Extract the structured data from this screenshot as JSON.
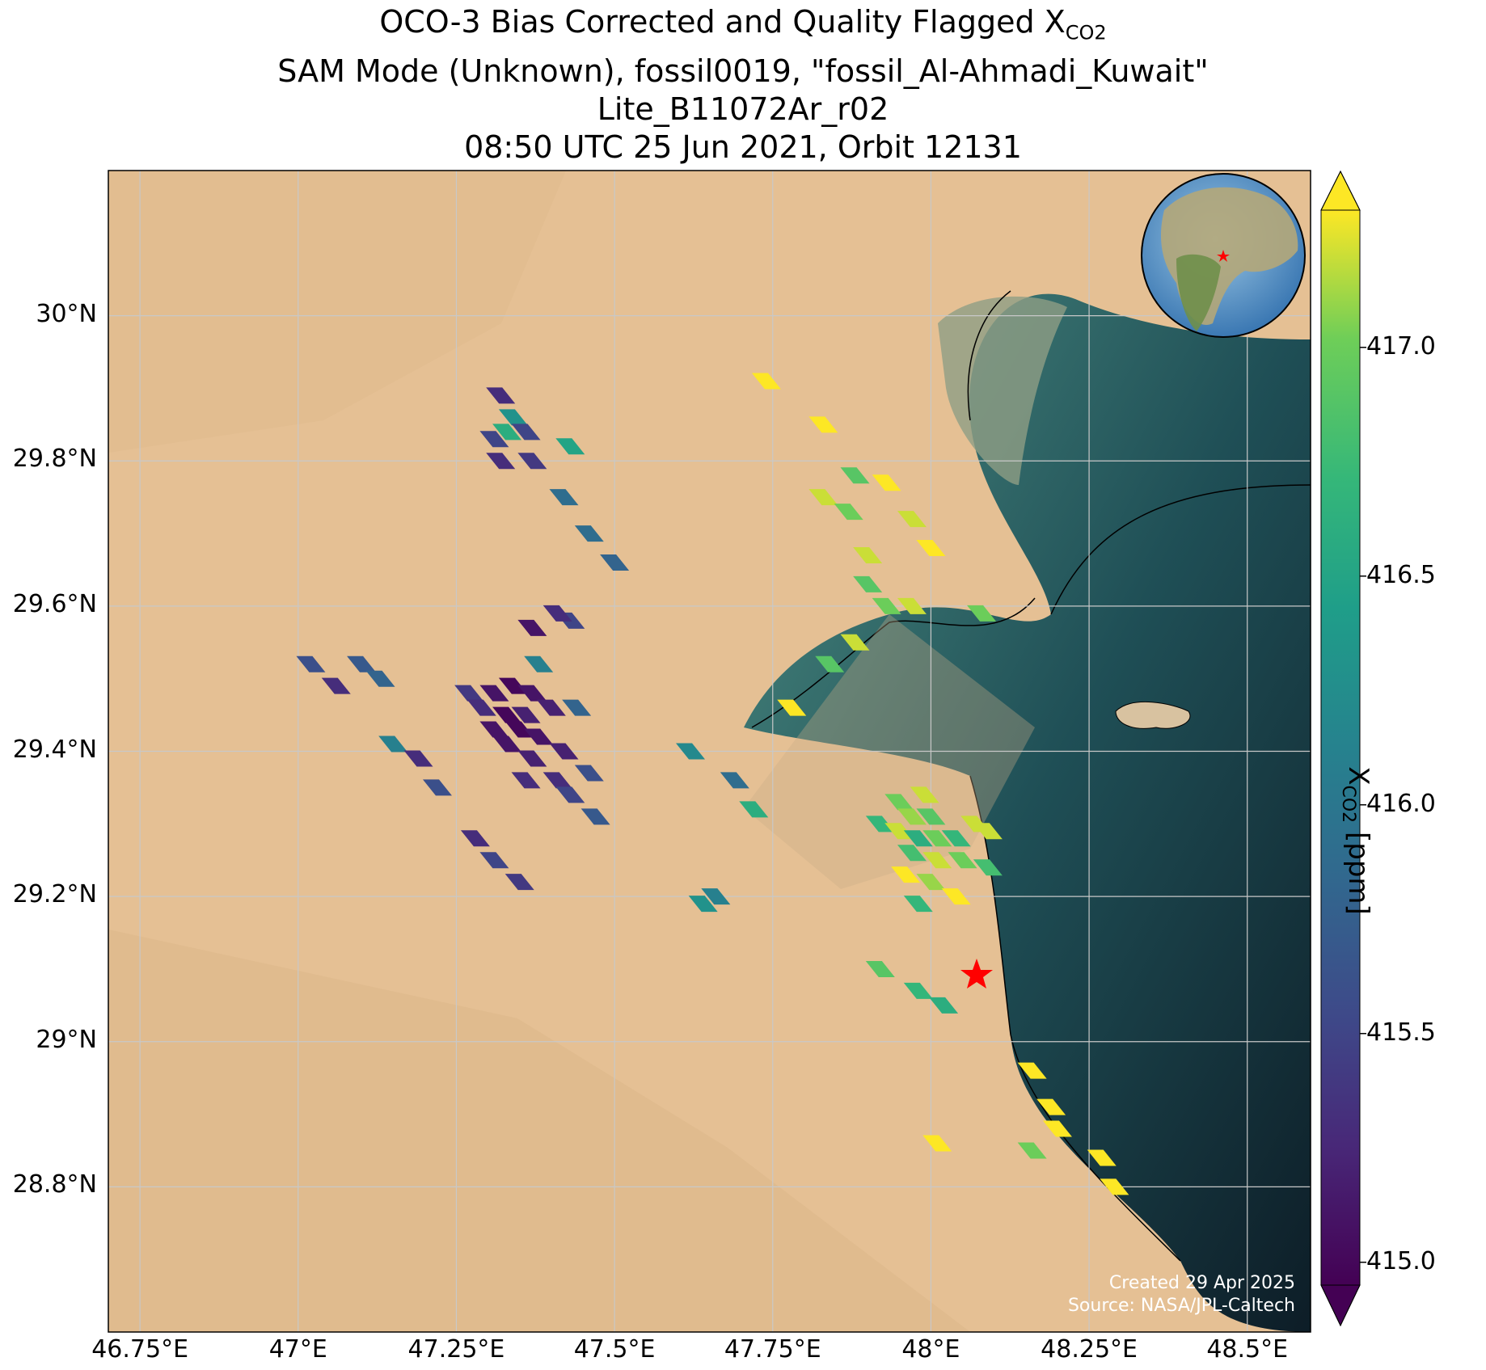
{
  "title": {
    "line1_prefix": "OCO-3 Bias Corrected and Quality Flagged X",
    "line1_sub": "CO2",
    "line2": "SAM Mode (Unknown), fossil0019, \"fossil_Al-Ahmadi_Kuwait\"",
    "line3": "Lite_B11072Ar_r02",
    "line4": "08:50 UTC 25 Jun 2021, Orbit 12131"
  },
  "map_data": {
    "lon_range": [
      46.7,
      48.6
    ],
    "lat_range": [
      28.6,
      30.2
    ],
    "lon_ticks": [
      "46.75°E",
      "47°E",
      "47.25°E",
      "47.5°E",
      "47.75°E",
      "48°E",
      "48.25°E",
      "48.5°E"
    ],
    "lon_tick_values": [
      46.75,
      47.0,
      47.25,
      47.5,
      47.75,
      48.0,
      48.25,
      48.5
    ],
    "lat_ticks": [
      "30°N",
      "29.8°N",
      "29.6°N",
      "29.4°N",
      "29.2°N",
      "29°N",
      "28.8°N"
    ],
    "lat_tick_values": [
      30.0,
      29.8,
      29.6,
      29.4,
      29.2,
      29.0,
      28.8
    ],
    "gridlines": true,
    "basemap": "satellite imagery",
    "target_marker": {
      "symbol": "red star",
      "lon": 48.07,
      "lat": 29.09
    },
    "inset": "globe with red star at target",
    "soundings": [
      [
        47.32,
        29.89,
        415.3
      ],
      [
        47.34,
        29.86,
        416.3
      ],
      [
        47.33,
        29.84,
        416.6
      ],
      [
        47.36,
        29.84,
        415.5
      ],
      [
        47.31,
        29.83,
        415.5
      ],
      [
        47.32,
        29.8,
        415.3
      ],
      [
        47.37,
        29.8,
        415.4
      ],
      [
        47.43,
        29.82,
        416.5
      ],
      [
        47.42,
        29.75,
        415.9
      ],
      [
        47.46,
        29.7,
        415.9
      ],
      [
        47.5,
        29.66,
        415.8
      ],
      [
        47.43,
        29.58,
        415.5
      ],
      [
        47.41,
        29.59,
        415.3
      ],
      [
        47.37,
        29.57,
        415.1
      ],
      [
        47.38,
        29.52,
        416.1
      ],
      [
        47.02,
        29.52,
        415.6
      ],
      [
        47.1,
        29.52,
        415.7
      ],
      [
        47.13,
        29.5,
        415.8
      ],
      [
        47.06,
        29.49,
        415.3
      ],
      [
        47.27,
        29.48,
        415.4
      ],
      [
        47.31,
        29.48,
        415.1
      ],
      [
        47.34,
        29.49,
        415.0
      ],
      [
        47.37,
        29.48,
        415.1
      ],
      [
        47.29,
        29.46,
        415.3
      ],
      [
        47.33,
        29.45,
        415.0
      ],
      [
        47.36,
        29.45,
        415.2
      ],
      [
        47.4,
        29.46,
        415.2
      ],
      [
        47.44,
        29.46,
        415.8
      ],
      [
        47.31,
        29.43,
        415.1
      ],
      [
        47.35,
        29.43,
        415.0
      ],
      [
        47.38,
        29.42,
        415.1
      ],
      [
        47.33,
        29.41,
        415.1
      ],
      [
        47.37,
        29.39,
        415.2
      ],
      [
        47.42,
        29.4,
        415.2
      ],
      [
        47.15,
        29.41,
        416.1
      ],
      [
        47.19,
        29.39,
        415.3
      ],
      [
        47.36,
        29.36,
        415.3
      ],
      [
        47.41,
        29.36,
        415.3
      ],
      [
        47.46,
        29.37,
        415.6
      ],
      [
        47.22,
        29.35,
        415.6
      ],
      [
        47.43,
        29.34,
        415.5
      ],
      [
        47.47,
        29.31,
        415.7
      ],
      [
        47.28,
        29.28,
        415.3
      ],
      [
        47.31,
        29.25,
        415.5
      ],
      [
        47.35,
        29.22,
        415.4
      ],
      [
        47.64,
        29.19,
        416.3
      ],
      [
        47.66,
        29.2,
        416.1
      ],
      [
        47.62,
        29.4,
        416.2
      ],
      [
        47.69,
        29.36,
        415.9
      ],
      [
        47.72,
        29.32,
        416.6
      ],
      [
        47.74,
        29.91,
        417.3
      ],
      [
        47.83,
        29.85,
        417.3
      ],
      [
        47.88,
        29.78,
        416.9
      ],
      [
        47.93,
        29.77,
        417.3
      ],
      [
        47.83,
        29.75,
        417.2
      ],
      [
        47.87,
        29.73,
        417.0
      ],
      [
        47.97,
        29.72,
        417.2
      ],
      [
        48.0,
        29.68,
        417.3
      ],
      [
        47.9,
        29.67,
        417.2
      ],
      [
        47.9,
        29.63,
        416.9
      ],
      [
        47.93,
        29.6,
        417.0
      ],
      [
        47.97,
        29.6,
        417.2
      ],
      [
        48.08,
        29.59,
        417.0
      ],
      [
        47.88,
        29.55,
        417.2
      ],
      [
        47.84,
        29.52,
        416.9
      ],
      [
        47.78,
        29.46,
        417.3
      ],
      [
        47.99,
        29.34,
        417.2
      ],
      [
        47.95,
        29.33,
        417.0
      ],
      [
        47.97,
        29.31,
        417.1
      ],
      [
        48.0,
        29.31,
        416.9
      ],
      [
        47.92,
        29.3,
        416.7
      ],
      [
        47.95,
        29.29,
        417.2
      ],
      [
        47.98,
        29.28,
        416.6
      ],
      [
        48.01,
        29.28,
        417.0
      ],
      [
        48.04,
        29.28,
        416.7
      ],
      [
        48.07,
        29.3,
        417.2
      ],
      [
        48.09,
        29.29,
        417.2
      ],
      [
        47.97,
        29.26,
        416.8
      ],
      [
        48.01,
        29.25,
        417.2
      ],
      [
        48.05,
        29.25,
        417.0
      ],
      [
        47.96,
        29.23,
        417.3
      ],
      [
        48.0,
        29.22,
        417.1
      ],
      [
        48.04,
        29.2,
        417.3
      ],
      [
        48.09,
        29.24,
        416.8
      ],
      [
        47.98,
        29.19,
        416.7
      ],
      [
        47.92,
        29.1,
        416.9
      ],
      [
        47.98,
        29.07,
        416.7
      ],
      [
        48.02,
        29.05,
        416.6
      ],
      [
        48.16,
        28.96,
        417.3
      ],
      [
        48.19,
        28.91,
        417.3
      ],
      [
        48.2,
        28.88,
        417.3
      ],
      [
        48.01,
        28.86,
        417.3
      ],
      [
        48.16,
        28.85,
        417.0
      ],
      [
        48.27,
        28.84,
        417.3
      ],
      [
        48.29,
        28.8,
        417.3
      ]
    ]
  },
  "credit": {
    "line1": "Created 29 Apr 2025",
    "line2": "Source: NASA/JPL-Caltech"
  },
  "colorbar": {
    "label_prefix": "X",
    "label_sub": "CO2",
    "label_suffix": " [ppm]",
    "min": 414.95,
    "max": 417.3,
    "ticks": [
      "415.0",
      "415.5",
      "416.0",
      "416.5",
      "417.0"
    ],
    "tick_values": [
      415.0,
      415.5,
      416.0,
      416.5,
      417.0
    ],
    "colormap": "viridis",
    "extend": "both"
  }
}
